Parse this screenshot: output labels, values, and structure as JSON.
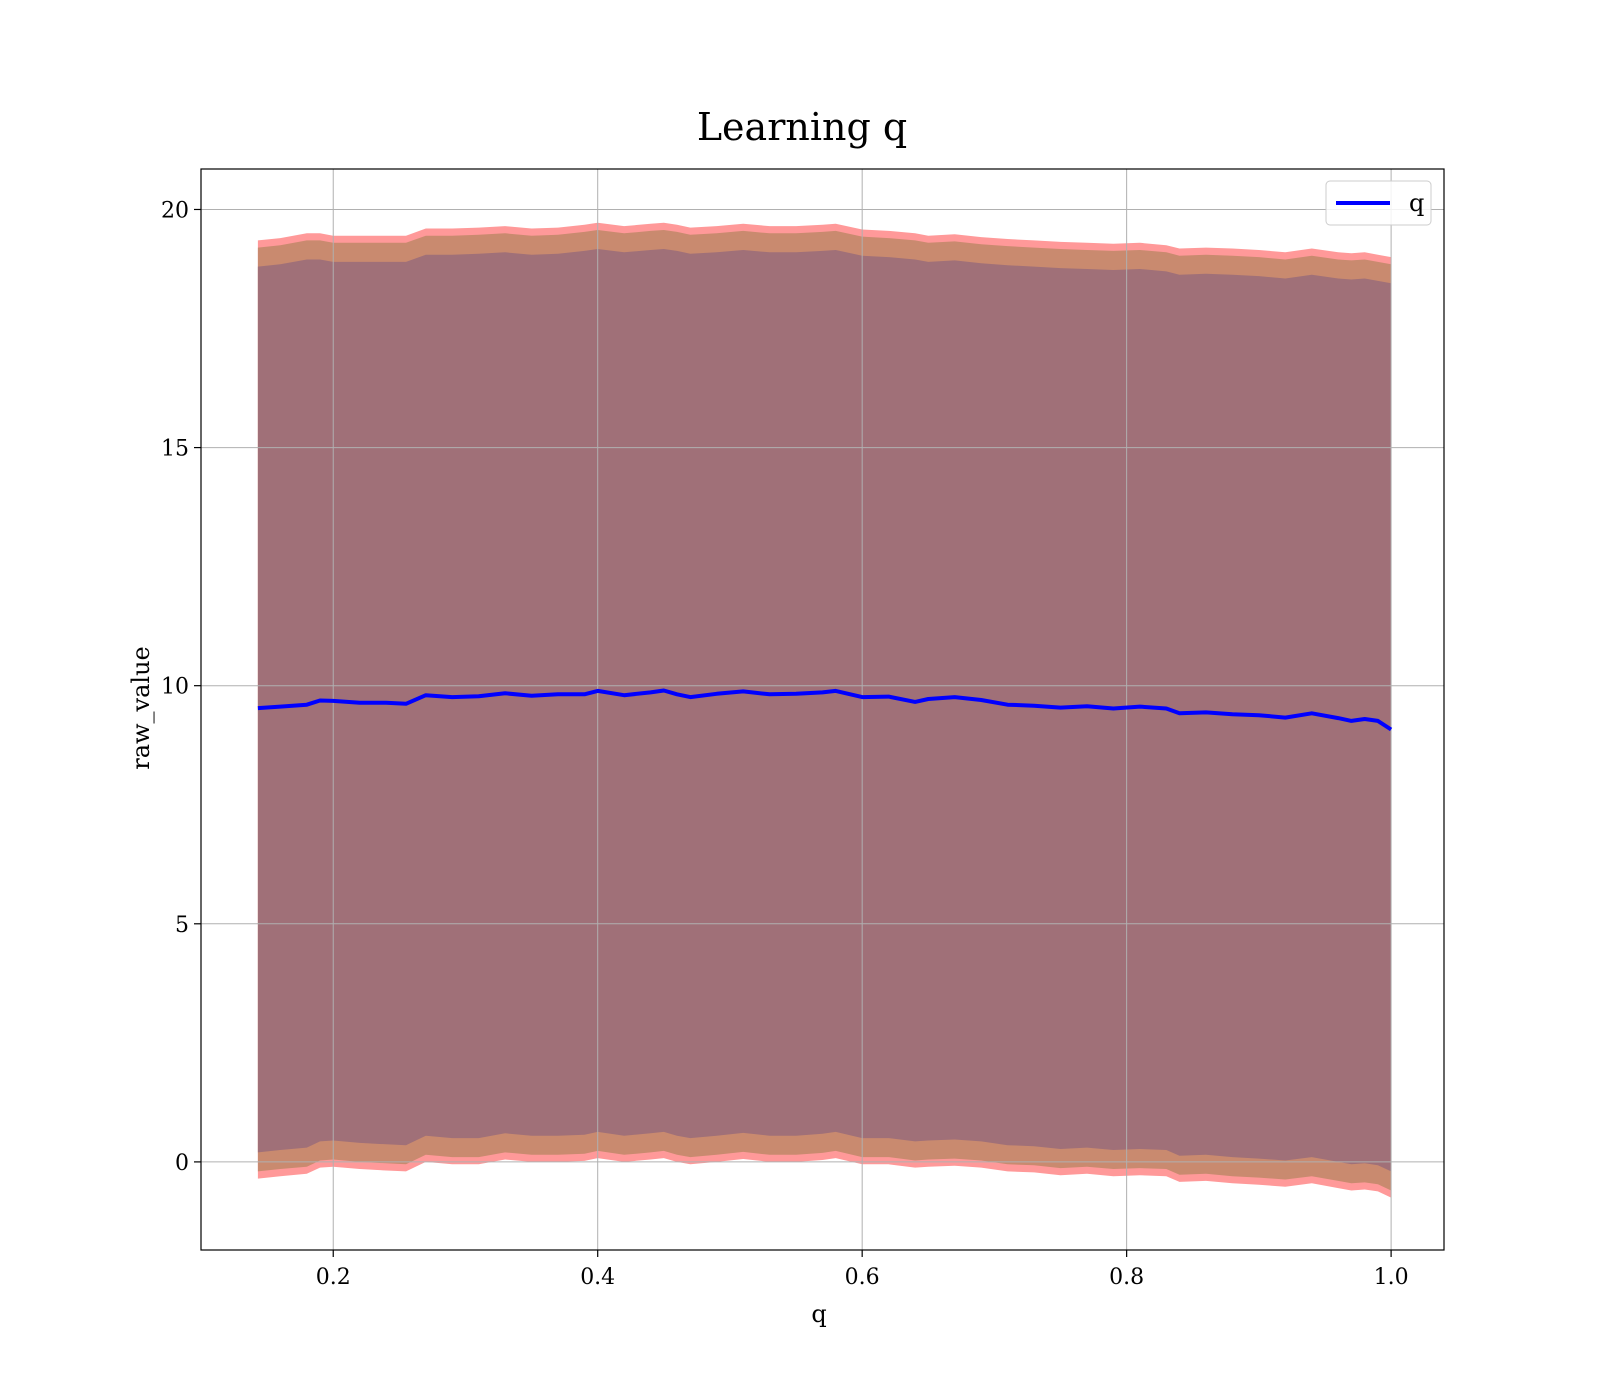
{
  "chart_data": {
    "type": "line",
    "title": "Learning q",
    "xlabel": "q",
    "ylabel": "raw_value",
    "xlim": [
      0.1,
      1.04
    ],
    "ylim": [
      -1.85,
      20.85
    ],
    "grid": true,
    "legend_position": "top-right",
    "xticks": [
      0.2,
      0.4,
      0.6,
      0.8,
      1.0
    ],
    "xtick_labels": [
      "0.2",
      "0.4",
      "0.6",
      "0.8",
      "1.0"
    ],
    "yticks": [
      0,
      5,
      10,
      15,
      20
    ],
    "ytick_labels": [
      "0",
      "5",
      "10",
      "15",
      "20"
    ],
    "colors": {
      "line": "#0000ff",
      "outer_band": "#ff9999",
      "middle_band": "#c98a6f",
      "inner_band": "#a07078",
      "grid": "#b0b0b0"
    },
    "series": [
      {
        "name": "q",
        "x": [
          0.143,
          0.16,
          0.18,
          0.19,
          0.2,
          0.22,
          0.24,
          0.255,
          0.27,
          0.29,
          0.31,
          0.33,
          0.35,
          0.37,
          0.39,
          0.4,
          0.42,
          0.44,
          0.45,
          0.46,
          0.47,
          0.49,
          0.51,
          0.53,
          0.55,
          0.57,
          0.58,
          0.6,
          0.62,
          0.64,
          0.65,
          0.67,
          0.69,
          0.71,
          0.73,
          0.75,
          0.77,
          0.79,
          0.81,
          0.83,
          0.84,
          0.86,
          0.88,
          0.9,
          0.92,
          0.94,
          0.96,
          0.97,
          0.98,
          0.99,
          1.0
        ],
        "values": [
          9.53,
          9.56,
          9.6,
          9.69,
          9.68,
          9.64,
          9.64,
          9.62,
          9.8,
          9.76,
          9.78,
          9.84,
          9.79,
          9.82,
          9.82,
          9.89,
          9.8,
          9.86,
          9.9,
          9.82,
          9.76,
          9.83,
          9.88,
          9.82,
          9.83,
          9.86,
          9.89,
          9.76,
          9.77,
          9.66,
          9.72,
          9.76,
          9.7,
          9.6,
          9.58,
          9.54,
          9.57,
          9.52,
          9.56,
          9.52,
          9.42,
          9.44,
          9.4,
          9.38,
          9.33,
          9.42,
          9.32,
          9.26,
          9.3,
          9.26,
          9.08
        ]
      }
    ],
    "bands": [
      {
        "name": "outer",
        "upper": [
          19.35,
          19.4,
          19.5,
          19.5,
          19.45,
          19.45,
          19.45,
          19.45,
          19.6,
          19.6,
          19.62,
          19.65,
          19.6,
          19.62,
          19.68,
          19.72,
          19.65,
          19.7,
          19.72,
          19.68,
          19.62,
          19.65,
          19.7,
          19.65,
          19.65,
          19.68,
          19.7,
          19.58,
          19.55,
          19.5,
          19.45,
          19.48,
          19.42,
          19.38,
          19.35,
          19.32,
          19.3,
          19.28,
          19.3,
          19.25,
          19.18,
          19.2,
          19.18,
          19.15,
          19.1,
          19.18,
          19.1,
          19.08,
          19.1,
          19.05,
          19.0
        ],
        "lower": [
          -0.35,
          -0.3,
          -0.25,
          -0.12,
          -0.1,
          -0.15,
          -0.18,
          -0.2,
          0.0,
          -0.05,
          -0.05,
          0.05,
          0.0,
          0.0,
          0.02,
          0.08,
          0.0,
          0.05,
          0.08,
          0.0,
          -0.05,
          0.0,
          0.06,
          0.0,
          0.0,
          0.04,
          0.08,
          -0.05,
          -0.05,
          -0.12,
          -0.1,
          -0.08,
          -0.12,
          -0.2,
          -0.22,
          -0.28,
          -0.25,
          -0.3,
          -0.28,
          -0.3,
          -0.42,
          -0.4,
          -0.45,
          -0.48,
          -0.52,
          -0.45,
          -0.55,
          -0.6,
          -0.58,
          -0.62,
          -0.75
        ]
      },
      {
        "name": "middle",
        "upper": [
          19.2,
          19.25,
          19.35,
          19.35,
          19.3,
          19.3,
          19.3,
          19.3,
          19.45,
          19.45,
          19.47,
          19.5,
          19.45,
          19.47,
          19.53,
          19.57,
          19.5,
          19.55,
          19.57,
          19.53,
          19.47,
          19.5,
          19.55,
          19.5,
          19.5,
          19.53,
          19.55,
          19.43,
          19.4,
          19.35,
          19.3,
          19.33,
          19.27,
          19.23,
          19.2,
          19.17,
          19.15,
          19.13,
          19.15,
          19.1,
          19.03,
          19.05,
          19.03,
          19.0,
          18.95,
          19.03,
          18.95,
          18.93,
          18.95,
          18.9,
          18.85
        ],
        "lower": [
          -0.2,
          -0.15,
          -0.1,
          0.03,
          0.05,
          0.0,
          -0.03,
          -0.05,
          0.15,
          0.1,
          0.1,
          0.2,
          0.15,
          0.15,
          0.17,
          0.23,
          0.15,
          0.2,
          0.23,
          0.15,
          0.1,
          0.15,
          0.21,
          0.15,
          0.15,
          0.19,
          0.23,
          0.1,
          0.1,
          0.03,
          0.05,
          0.07,
          0.03,
          -0.05,
          -0.07,
          -0.13,
          -0.1,
          -0.15,
          -0.13,
          -0.15,
          -0.27,
          -0.25,
          -0.3,
          -0.33,
          -0.37,
          -0.3,
          -0.4,
          -0.45,
          -0.43,
          -0.47,
          -0.6
        ]
      },
      {
        "name": "inner",
        "upper": [
          18.8,
          18.85,
          18.95,
          18.95,
          18.9,
          18.9,
          18.9,
          18.9,
          19.05,
          19.05,
          19.07,
          19.1,
          19.05,
          19.07,
          19.13,
          19.17,
          19.1,
          19.15,
          19.17,
          19.13,
          19.07,
          19.1,
          19.15,
          19.1,
          19.1,
          19.13,
          19.15,
          19.03,
          19.0,
          18.95,
          18.9,
          18.93,
          18.87,
          18.83,
          18.8,
          18.77,
          18.75,
          18.73,
          18.75,
          18.7,
          18.63,
          18.65,
          18.63,
          18.6,
          18.55,
          18.63,
          18.55,
          18.53,
          18.55,
          18.5,
          18.45
        ],
        "lower": [
          0.2,
          0.25,
          0.3,
          0.43,
          0.45,
          0.4,
          0.37,
          0.35,
          0.55,
          0.5,
          0.5,
          0.6,
          0.55,
          0.55,
          0.57,
          0.63,
          0.55,
          0.6,
          0.63,
          0.55,
          0.5,
          0.55,
          0.61,
          0.55,
          0.55,
          0.59,
          0.63,
          0.5,
          0.5,
          0.43,
          0.45,
          0.47,
          0.43,
          0.35,
          0.33,
          0.27,
          0.3,
          0.25,
          0.27,
          0.25,
          0.13,
          0.15,
          0.1,
          0.07,
          0.03,
          0.1,
          0.0,
          -0.05,
          -0.03,
          -0.07,
          -0.2
        ]
      }
    ],
    "legend": [
      {
        "label": "q"
      }
    ]
  }
}
